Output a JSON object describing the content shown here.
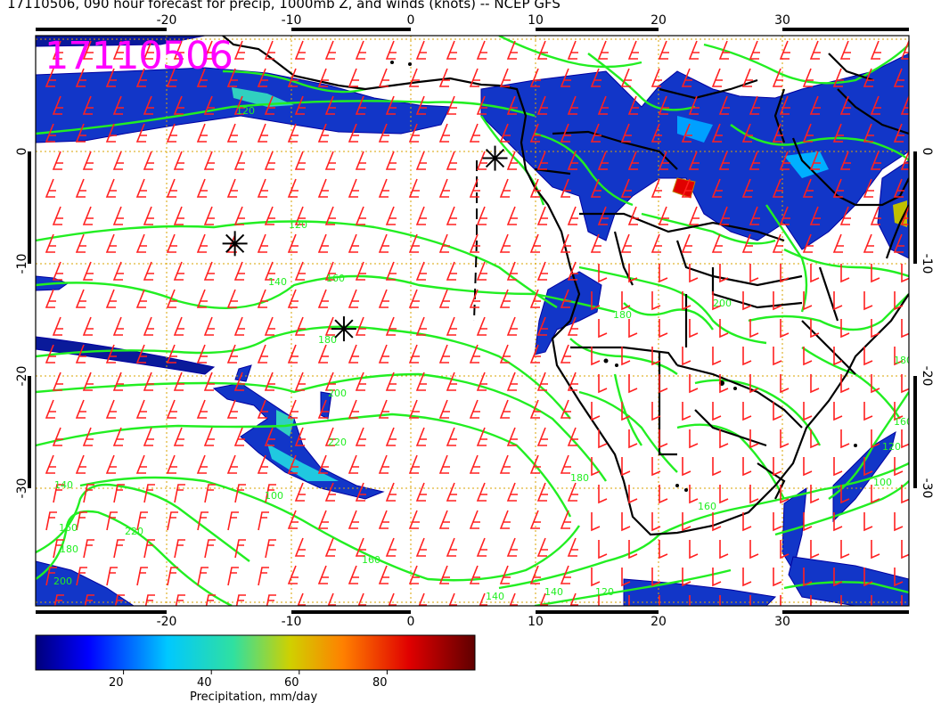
{
  "title": "17110506, 090 hour forecast for precip, 1000mb Z, and winds (knots) -- NCEP GFS",
  "stamp": "17110506",
  "map": {
    "lon_range": [
      -30,
      40
    ],
    "lat_range": [
      -40,
      10
    ],
    "lon_ticks": [
      "-20",
      "-10",
      "0",
      "10",
      "20",
      "30"
    ],
    "lat_ticks": [
      "0",
      "-10",
      "-20",
      "-30"
    ],
    "contour_labels": [
      "120",
      "140",
      "160",
      "180",
      "200",
      "220",
      "100",
      "140",
      "160",
      "180",
      "200",
      "220",
      "180",
      "160",
      "140",
      "120",
      "140",
      "160",
      "180",
      "200",
      "180",
      "160",
      "120",
      "100",
      "120"
    ],
    "markers": [
      {
        "name": "asterisk",
        "lon": -14.2,
        "lat": -8.2
      },
      {
        "name": "asterisk",
        "lon": -5.4,
        "lat": -15.8
      },
      {
        "name": "asterisk",
        "lon": 6.8,
        "lat": -0.6
      }
    ],
    "colors": {
      "contour": "#22ee22",
      "wind_barb": "#ff2020",
      "grid": "#d9a300",
      "stamp": "#ff00ff",
      "coast": "#000000"
    }
  },
  "colorbar": {
    "title": "Precipitation, mm/day",
    "ticks": [
      "20",
      "40",
      "60",
      "80"
    ],
    "tick_values": [
      20,
      40,
      60,
      80
    ],
    "range": [
      0,
      100
    ]
  }
}
